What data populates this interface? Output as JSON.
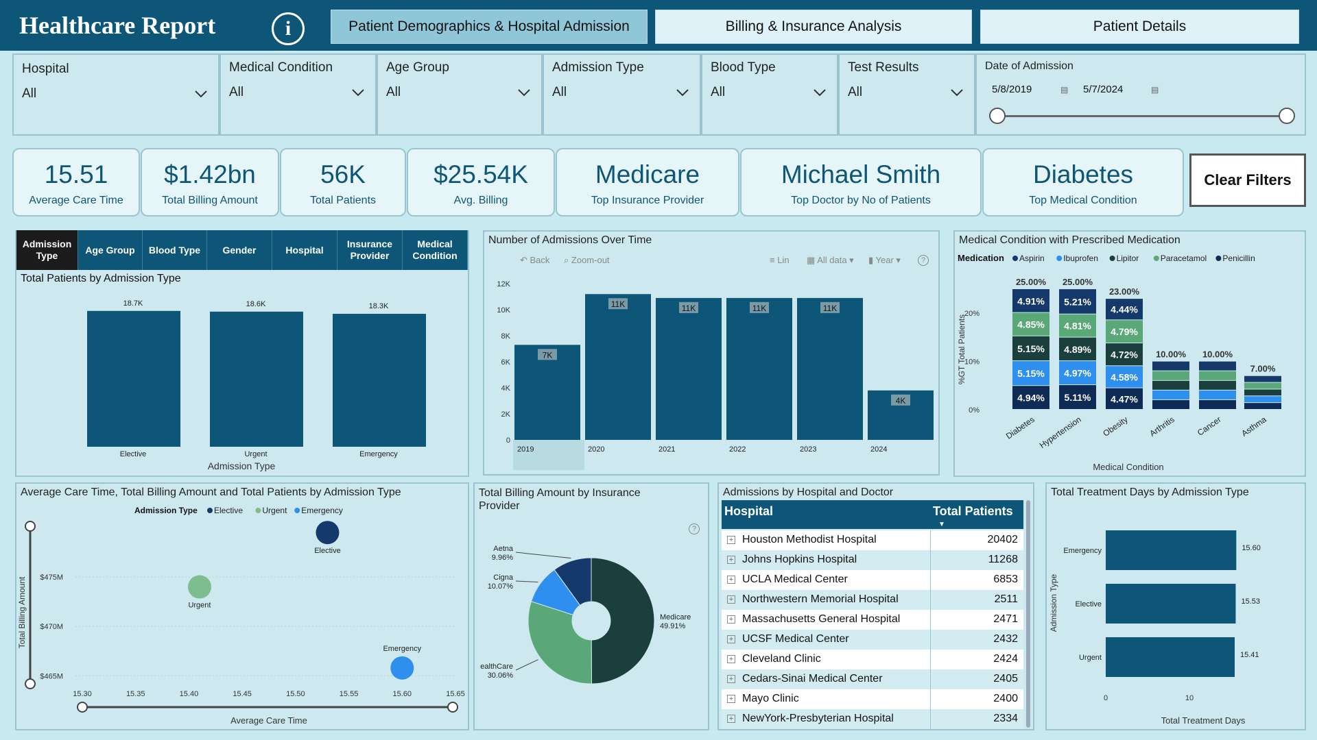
{
  "header": {
    "title": "Healthcare Report",
    "info_icon": "info-icon",
    "tabs": [
      "Patient Demographics & Hospital Admission",
      "Billing & Insurance Analysis",
      "Patient Details"
    ]
  },
  "filters": [
    {
      "label": "Hospital",
      "value": "All"
    },
    {
      "label": "Medical Condition",
      "value": "All"
    },
    {
      "label": "Age Group",
      "value": "All"
    },
    {
      "label": "Admission Type",
      "value": "All"
    },
    {
      "label": "Blood Type",
      "value": "All"
    },
    {
      "label": "Test Results",
      "value": "All"
    }
  ],
  "date_filter": {
    "label": "Date of Admission",
    "start": "5/8/2019",
    "end": "5/7/2024"
  },
  "kpis": [
    {
      "value": "15.51",
      "caption": "Average Care Time"
    },
    {
      "value": "$1.42bn",
      "caption": "Total Billing Amount"
    },
    {
      "value": "56K",
      "caption": "Total Patients"
    },
    {
      "value": "$25.54K",
      "caption": "Avg. Billing"
    },
    {
      "value": "Medicare",
      "caption": "Top Insurance Provider"
    },
    {
      "value": "Michael Smith",
      "caption": "Top Doctor by No of Patients"
    },
    {
      "value": "Diabetes",
      "caption": "Top Medical Condition"
    }
  ],
  "clear_filters": "Clear Filters",
  "subtabs": [
    "Admission Type",
    "Age Group",
    "Blood Type",
    "Gender",
    "Hospital",
    "Insurance Provider",
    "Medical Condition"
  ],
  "colors": {
    "primary": "#0d5678",
    "dark": "#1b3f3c",
    "green": "#5aa877",
    "blue": "#2e8fee",
    "navy": "#15396b",
    "bg": "#c8e9ef"
  },
  "chart_data": [
    {
      "type": "bar",
      "title": "Total Patients by Admission Type",
      "xlabel": "Admission Type",
      "categories": [
        "Elective",
        "Urgent",
        "Emergency"
      ],
      "values": [
        18.7,
        18.6,
        18.3
      ],
      "data_labels": [
        "18.7K",
        "18.6K",
        "18.3K"
      ],
      "ylim": [
        0,
        20
      ]
    },
    {
      "type": "bar",
      "title": "Number of Admissions Over Time",
      "toolbar": [
        "Back",
        "Zoom-out",
        "Lin",
        "All data",
        "Year"
      ],
      "categories": [
        "2019",
        "2020",
        "2021",
        "2022",
        "2023",
        "2024"
      ],
      "values": [
        7.3,
        11.2,
        10.9,
        10.9,
        10.9,
        3.8
      ],
      "data_labels": [
        "7K",
        "11K",
        "11K",
        "11K",
        "11K",
        "4K"
      ],
      "yticks": [
        "0",
        "2K",
        "4K",
        "6K",
        "8K",
        "10K",
        "12K"
      ],
      "ylim": [
        0,
        12
      ]
    },
    {
      "type": "bar",
      "title": "Medical Condition with Prescribed Medication",
      "legend_title": "Medication",
      "xlabel": "Medical Condition",
      "ylabel": "%GT Total Patients",
      "yticks": [
        "0%",
        "10%",
        "20%"
      ],
      "ylim": [
        0,
        25
      ],
      "categories": [
        "Diabetes",
        "Hypertension",
        "Obesity",
        "Arthritis",
        "Cancer",
        "Asthma"
      ],
      "totals": [
        25.0,
        25.0,
        23.0,
        10.0,
        10.0,
        7.0
      ],
      "total_labels": [
        "25.00%",
        "25.00%",
        "23.00%",
        "10.00%",
        "10.00%",
        "7.00%"
      ],
      "series": [
        {
          "name": "Aspirin",
          "color": "#15396b",
          "values": [
            4.91,
            5.21,
            4.44,
            2.0,
            2.0,
            1.4
          ],
          "labels": [
            "4.91%",
            "5.21%",
            "4.44%"
          ]
        },
        {
          "name": "Ibuprofen",
          "color": "#2e8fee",
          "values": [
            5.15,
            4.97,
            4.58,
            2.0,
            2.0,
            1.4
          ],
          "labels": [
            "5.15%",
            "4.97%",
            "4.58%"
          ]
        },
        {
          "name": "Lipitor",
          "color": "#1b3f3c",
          "values": [
            5.15,
            4.89,
            4.72,
            2.0,
            2.0,
            1.4
          ],
          "labels": [
            "5.15%",
            "4.89%",
            "4.72%"
          ]
        },
        {
          "name": "Paracetamol",
          "color": "#5aa877",
          "values": [
            4.85,
            4.81,
            4.79,
            2.0,
            2.0,
            1.4
          ],
          "labels": [
            "4.85%",
            "4.81%",
            "4.79%"
          ]
        },
        {
          "name": "Penicillin",
          "color": "#0e2b55",
          "values": [
            4.94,
            5.11,
            4.47,
            2.0,
            2.0,
            1.4
          ],
          "labels": [
            "4.94%",
            "5.11%",
            "4.47%"
          ]
        }
      ],
      "stack_order": [
        "Penicillin",
        "Ibuprofen",
        "Lipitor",
        "Paracetamol",
        "Aspirin"
      ]
    },
    {
      "type": "scatter",
      "title": "Average Care Time, Total Billing Amount and Total Patients by Admission Type",
      "legend_title": "Admission Type",
      "xlabel": "Average Care Time",
      "ylabel": "Total Billing Amount",
      "xticks": [
        "15.30",
        "15.35",
        "15.40",
        "15.45",
        "15.50",
        "15.55",
        "15.60",
        "15.65"
      ],
      "yticks": [
        "$465M",
        "$470M",
        "$475M"
      ],
      "xlim": [
        15.3,
        15.65
      ],
      "ylim": [
        463.5,
        480
      ],
      "points": [
        {
          "name": "Elective",
          "x": 15.53,
          "y": 479.5,
          "color": "#15396b"
        },
        {
          "name": "Urgent",
          "x": 15.41,
          "y": 474.0,
          "color": "#7dbd8e"
        },
        {
          "name": "Emergency",
          "x": 15.6,
          "y": 465.8,
          "color": "#2e8fee"
        }
      ]
    },
    {
      "type": "pie",
      "title": "Total Billing Amount by Insurance Provider",
      "slices": [
        {
          "name": "Medicare",
          "value": 49.91,
          "label": "49.91%",
          "color": "#1b3f3c"
        },
        {
          "name": "ealthCare",
          "value": 30.06,
          "label": "30.06%",
          "color": "#5aa877"
        },
        {
          "name": "Cigna",
          "value": 10.07,
          "label": "10.07%",
          "color": "#2e8fee"
        },
        {
          "name": "Aetna",
          "value": 9.96,
          "label": "9.96%",
          "color": "#15396b"
        }
      ]
    },
    {
      "type": "table",
      "title": "Admissions by Hospital and Doctor",
      "columns": [
        "Hospital",
        "Total Patients"
      ],
      "rows": [
        [
          "Houston Methodist Hospital",
          "20402"
        ],
        [
          "Johns Hopkins Hospital",
          "11268"
        ],
        [
          "UCLA Medical Center",
          "6853"
        ],
        [
          "Northwestern Memorial Hospital",
          "2511"
        ],
        [
          "Massachusetts General Hospital",
          "2471"
        ],
        [
          "UCSF Medical Center",
          "2432"
        ],
        [
          "Cleveland Clinic",
          "2424"
        ],
        [
          "Cedars-Sinai Medical Center",
          "2405"
        ],
        [
          "Mayo Clinic",
          "2400"
        ],
        [
          "NewYork-Presbyterian Hospital",
          "2334"
        ]
      ]
    },
    {
      "type": "bar",
      "orientation": "horizontal",
      "title": "Total Treatment Days by Admission Type",
      "xlabel": "Total Treatment Days",
      "ylabel": "Admission Type",
      "categories": [
        "Emergency",
        "Elective",
        "Urgent"
      ],
      "values": [
        15.6,
        15.53,
        15.41
      ],
      "data_labels": [
        "15.60",
        "15.53",
        "15.41"
      ],
      "xticks": [
        "0",
        "10"
      ],
      "xlim": [
        0,
        20
      ]
    }
  ]
}
